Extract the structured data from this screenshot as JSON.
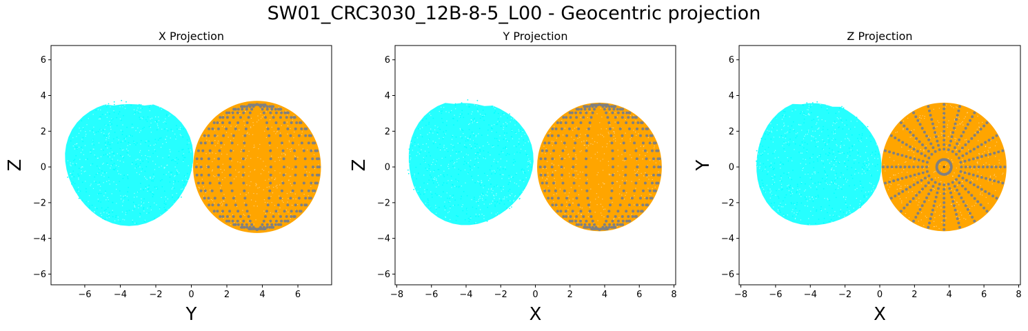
{
  "figure": {
    "title": "SW01_CRC3030_12B-8-5_L00 - Geocentric projection"
  },
  "colors": {
    "cloud_a": "#00ffff",
    "cloud_b": "#ffa500",
    "mesh": "#808080",
    "frame": "#000000"
  },
  "chart_data": [
    {
      "type": "scatter",
      "title": "X Projection",
      "xlabel": "Y",
      "ylabel": "Z",
      "xlim": [
        -7.9,
        7.9
      ],
      "ylim": [
        -6.6,
        6.8
      ],
      "xticks": [
        -6,
        -4,
        -2,
        0,
        2,
        4,
        6
      ],
      "yticks": [
        -6,
        -4,
        -2,
        0,
        2,
        4,
        6
      ],
      "series": [
        {
          "color": "#00ffff",
          "shape": "blob",
          "center": [
            -3.5,
            0.3
          ],
          "radii": [
            3.6,
            3.5
          ]
        },
        {
          "color": "#ffa500",
          "shape": "disc",
          "center": [
            3.7,
            0.0
          ],
          "radii": [
            3.6,
            3.7
          ]
        },
        {
          "color": "#808080",
          "shape": "meridian-grid",
          "center": [
            3.7,
            0.0
          ],
          "radii": [
            3.5,
            3.5
          ]
        }
      ]
    },
    {
      "type": "scatter",
      "title": "Y Projection",
      "xlabel": "X",
      "ylabel": "Z",
      "xlim": [
        -8.1,
        8.1
      ],
      "ylim": [
        -6.6,
        6.8
      ],
      "xticks": [
        -8,
        -6,
        -4,
        -2,
        0,
        2,
        4,
        6,
        8
      ],
      "yticks": [
        -6,
        -4,
        -2,
        0,
        2,
        4,
        6
      ],
      "series": [
        {
          "color": "#00ffff",
          "shape": "blob",
          "center": [
            -3.8,
            0.3
          ],
          "radii": [
            3.6,
            3.5
          ]
        },
        {
          "color": "#ffa500",
          "shape": "disc",
          "center": [
            3.7,
            0.0
          ],
          "radii": [
            3.6,
            3.6
          ]
        },
        {
          "color": "#808080",
          "shape": "meridian-grid",
          "center": [
            3.7,
            0.0
          ],
          "radii": [
            3.5,
            3.5
          ]
        }
      ]
    },
    {
      "type": "scatter",
      "title": "Z Projection",
      "xlabel": "X",
      "ylabel": "Y",
      "xlim": [
        -8.1,
        8.1
      ],
      "ylim": [
        -6.6,
        6.8
      ],
      "xticks": [
        -8,
        -6,
        -4,
        -2,
        0,
        2,
        4,
        6,
        8
      ],
      "yticks": [
        -6,
        -4,
        -2,
        0,
        2,
        4,
        6
      ],
      "series": [
        {
          "color": "#00ffff",
          "shape": "blob",
          "center": [
            -3.6,
            0.2
          ],
          "radii": [
            3.6,
            3.5
          ]
        },
        {
          "color": "#ffa500",
          "shape": "disc",
          "center": [
            3.7,
            0.0
          ],
          "radii": [
            3.6,
            3.6
          ]
        },
        {
          "color": "#808080",
          "shape": "radial-grid",
          "center": [
            3.7,
            0.0
          ],
          "radii": [
            3.5,
            3.5
          ]
        }
      ]
    }
  ]
}
